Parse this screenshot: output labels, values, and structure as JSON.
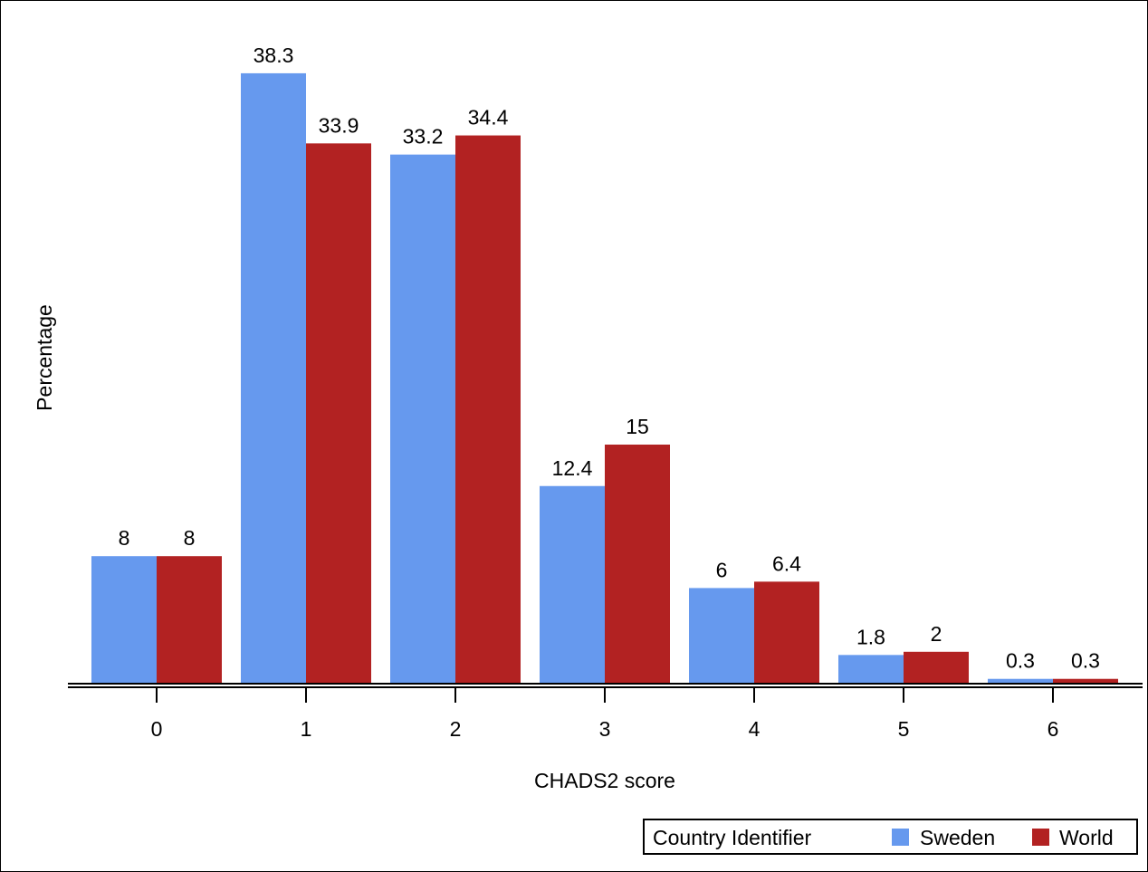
{
  "chart_data": {
    "type": "bar",
    "categories": [
      "0",
      "1",
      "2",
      "3",
      "4",
      "5",
      "6"
    ],
    "series": [
      {
        "name": "Sweden",
        "color": "#6699EE",
        "values": [
          8,
          38.3,
          33.2,
          12.4,
          6,
          1.8,
          0.3
        ]
      },
      {
        "name": "World",
        "color": "#B22222",
        "values": [
          8,
          33.9,
          34.4,
          15,
          6.4,
          2,
          0.3
        ]
      }
    ],
    "data_labels": {
      "Sweden": [
        "8",
        "38.3",
        "33.2",
        "12.4",
        "6",
        "1.8",
        "0.3"
      ],
      "World": [
        "8",
        "33.9",
        "34.4",
        "15",
        "6.4",
        "2",
        "0.3"
      ]
    },
    "xlabel": "CHADS2 score",
    "ylabel": "Percentage",
    "ylim": [
      0,
      42
    ],
    "grid": false,
    "legend": {
      "title": "Country Identifier",
      "placement": "bottom-right"
    }
  }
}
